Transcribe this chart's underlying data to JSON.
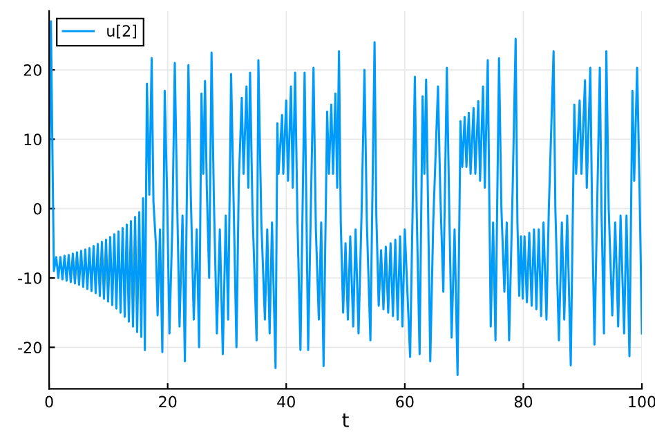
{
  "chart_data": {
    "type": "line",
    "xlabel": "t",
    "xlim": [
      0,
      100
    ],
    "ylim": [
      -26,
      28.5
    ],
    "xticks": [
      0,
      20,
      40,
      60,
      80,
      100
    ],
    "yticks": [
      -20,
      -10,
      0,
      10,
      20
    ],
    "grid": true,
    "legend": "top left",
    "line_style": "solid",
    "series": [
      {
        "name": "u[2]",
        "color": "#009af9",
        "x": [
          0,
          0.3,
          0.8,
          1.2,
          1.55,
          1.9,
          2.25,
          2.6,
          2.95,
          3.3,
          3.65,
          4.0,
          4.35,
          4.7,
          5.05,
          5.4,
          5.75,
          6.1,
          6.45,
          6.8,
          7.15,
          7.5,
          7.85,
          8.2,
          8.55,
          8.9,
          9.25,
          9.6,
          9.95,
          10.3,
          10.65,
          11.0,
          11.35,
          11.7,
          12.05,
          12.4,
          12.75,
          13.1,
          13.45,
          13.8,
          14.15,
          14.5,
          14.85,
          15.2,
          15.55,
          15.85,
          16.15,
          16.5,
          16.9,
          17.3,
          17.6,
          18.0,
          18.3,
          18.7,
          19.1,
          19.5,
          19.9,
          20.3,
          20.8,
          21.2,
          21.6,
          22.0,
          22.5,
          22.9,
          23.5,
          23.9,
          24.4,
          24.9,
          25.3,
          25.7,
          26.0,
          26.3,
          26.6,
          27.0,
          27.4,
          27.8,
          28.3,
          28.8,
          29.3,
          29.8,
          30.2,
          30.7,
          31.1,
          31.6,
          32.0,
          32.5,
          32.8,
          33.3,
          33.6,
          33.9,
          34.3,
          35.0,
          35.3,
          35.8,
          36.4,
          36.8,
          37.2,
          37.6,
          38.2,
          38.5,
          38.7,
          39.3,
          39.5,
          40.0,
          40.3,
          40.8,
          41.1,
          41.5,
          41.9,
          42.4,
          43.1,
          43.4,
          43.7,
          44.6,
          45.0,
          45.5,
          45.9,
          46.3,
          46.9,
          47.2,
          47.6,
          47.9,
          48.3,
          48.6,
          48.9,
          49.2,
          49.6,
          50.0,
          50.4,
          50.8,
          51.3,
          51.7,
          52.2,
          52.7,
          53.2,
          53.6,
          54.2,
          54.9,
          55.2,
          55.6,
          56.0,
          56.4,
          56.8,
          57.2,
          57.6,
          58.0,
          58.4,
          58.8,
          59.2,
          59.6,
          60.0,
          60.9,
          61.7,
          62.0,
          62.5,
          63.0,
          63.3,
          63.6,
          63.9,
          64.3,
          64.8,
          65.6,
          66.0,
          66.5,
          67.1,
          67.5,
          67.9,
          68.4,
          68.9,
          69.4,
          69.7,
          70.1,
          70.4,
          70.8,
          71.1,
          71.6,
          71.9,
          72.4,
          72.7,
          73.2,
          73.5,
          74.0,
          74.3,
          74.5,
          74.9,
          75.3,
          75.9,
          76.3,
          76.8,
          77.2,
          77.6,
          78.2,
          78.7,
          79.0,
          79.3,
          79.6,
          79.9,
          80.2,
          80.6,
          81.0,
          81.4,
          81.8,
          82.2,
          82.6,
          83.0,
          83.4,
          83.9,
          84.3,
          85.1,
          85.4,
          86.0,
          86.5,
          86.9,
          87.4,
          88.0,
          88.6,
          88.9,
          89.5,
          89.8,
          90.4,
          90.7,
          91.3,
          91.6,
          92.0,
          92.9,
          93.2,
          93.6,
          94.0,
          94.4,
          95.0,
          95.5,
          96.0,
          96.4,
          97.0,
          97.4,
          97.9,
          98.4,
          98.7,
          99.2,
          99.6,
          100
        ],
        "values": [
          0,
          27,
          -9,
          -7,
          -10,
          -7,
          -10.2,
          -6.8,
          -10.4,
          -6.7,
          -10.6,
          -6.5,
          -10.8,
          -6.3,
          -11,
          -6.1,
          -11.3,
          -5.9,
          -11.6,
          -5.7,
          -11.9,
          -5.4,
          -12.2,
          -5.1,
          -12.6,
          -4.8,
          -13,
          -4.5,
          -13.4,
          -4.1,
          -13.9,
          -3.7,
          -14.4,
          -3.3,
          -15,
          -2.8,
          -15.6,
          -2.3,
          -16.3,
          -1.8,
          -17,
          -1.2,
          -17.8,
          -0.5,
          -18.5,
          1.5,
          -20.4,
          18,
          2,
          21.7,
          1,
          -5,
          -15.4,
          -3,
          -20.7,
          17,
          2,
          -18,
          -2,
          21,
          1,
          -17,
          -1,
          -22,
          20.7,
          2,
          -16,
          -3,
          -20,
          16.6,
          5,
          18.4,
          3,
          -10,
          22.5,
          1,
          -18,
          -3,
          -21,
          -1,
          -16,
          19.4,
          2,
          -20,
          4,
          16,
          5,
          17.6,
          3,
          19.6,
          0,
          -19,
          21.4,
          -2,
          -16,
          -3,
          -18,
          -2,
          -23,
          12.3,
          5,
          13.5,
          5,
          15.6,
          4,
          17.6,
          3,
          19.6,
          -2,
          -20.4,
          19.6,
          0,
          -20.4,
          20.3,
          -3,
          -16,
          -2,
          -22.7,
          14,
          5,
          15,
          5,
          16.6,
          3,
          22.7,
          -2,
          -15,
          -5,
          -16,
          -4,
          -17,
          -3,
          -18,
          -1,
          20,
          -2,
          -19,
          24,
          -1,
          -14,
          -6,
          -14.5,
          -5.5,
          -15,
          -5,
          -15.5,
          -4.5,
          -16,
          -4,
          -17,
          -3,
          -21.4,
          19,
          0,
          -21,
          16.2,
          5,
          18.6,
          2,
          -22,
          -2,
          17.6,
          2,
          -12,
          20.3,
          0,
          -18.6,
          -3,
          -24,
          12.6,
          6,
          13.2,
          6,
          13.8,
          5,
          14.5,
          5,
          15.5,
          4,
          17.6,
          3,
          21.4,
          -2,
          -17,
          -2,
          -19,
          21.7,
          0,
          -12,
          -2,
          -19,
          3,
          24.5,
          -2,
          -12.6,
          -4,
          -13,
          -4,
          -13.5,
          -3.5,
          -14,
          -3,
          -14.5,
          -3,
          -15.5,
          -2,
          -16,
          0,
          22.7,
          0,
          -19,
          -2,
          -16,
          -1,
          -22.6,
          15,
          5,
          15.6,
          5,
          18.5,
          3,
          20.3,
          -1,
          -19.6,
          20.3,
          -1,
          -18,
          22.7,
          0,
          -15.4,
          -2,
          -17,
          -1,
          -18,
          -1,
          -21.3,
          17,
          4,
          20.3,
          3,
          -18
        ]
      }
    ]
  }
}
